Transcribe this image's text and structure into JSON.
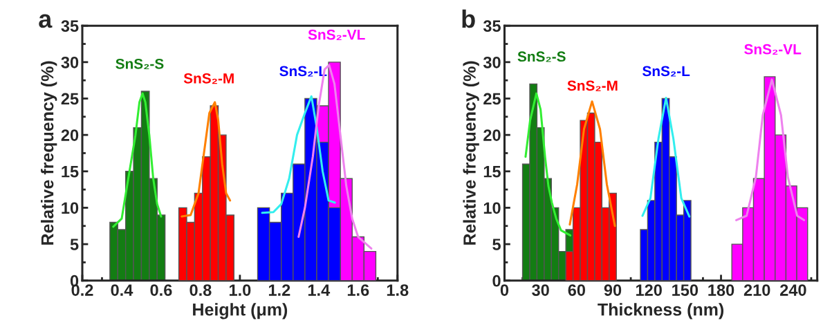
{
  "chart_data": [
    {
      "type": "histogram",
      "title": "a",
      "xlabel": "Height (μm)",
      "ylabel": "Relative frequency (%)",
      "xlim": [
        0.2,
        1.8
      ],
      "xticks": [
        {
          "value": 0.2,
          "label": "0.2"
        },
        {
          "value": 0.4,
          "label": "0.4"
        },
        {
          "value": 0.6,
          "label": "0.6"
        },
        {
          "value": 0.8,
          "label": "0.8"
        },
        {
          "value": 1.0,
          "label": "1.0"
        },
        {
          "value": 1.2,
          "label": "1.2"
        },
        {
          "value": 1.4,
          "label": "1.4"
        },
        {
          "value": 1.6,
          "label": "1.6"
        },
        {
          "value": 1.8,
          "label": "1.8"
        }
      ],
      "ylim": [
        0,
        35
      ],
      "yticks": [
        0,
        5,
        10,
        15,
        20,
        25,
        30,
        35
      ],
      "series": [
        {
          "name": "SnS₂-S",
          "type": "histogram",
          "color": "#137d13",
          "bins": [
            0.34,
            0.38,
            0.42,
            0.46,
            0.5,
            0.54,
            0.58,
            0.62
          ],
          "values": [
            8,
            7,
            15,
            21,
            26,
            14,
            9
          ]
        },
        {
          "type": "line",
          "color": "#33ee33",
          "x": [
            0.357,
            0.4,
            0.423,
            0.47,
            0.49,
            0.506,
            0.52,
            0.54,
            0.56,
            0.58,
            0.6
          ],
          "values": [
            7.4,
            8.5,
            12.3,
            20,
            24.5,
            25.7,
            24.5,
            20,
            14,
            10.5,
            8.8
          ]
        },
        {
          "name": "SnS₂-M",
          "type": "histogram",
          "color": "#ff0000",
          "bins": [
            0.69,
            0.73,
            0.77,
            0.81,
            0.85,
            0.89,
            0.93,
            0.97
          ],
          "values": [
            10,
            8,
            12,
            17,
            24,
            20,
            9
          ]
        },
        {
          "type": "line",
          "color": "#ff8000",
          "x": [
            0.705,
            0.75,
            0.79,
            0.82,
            0.845,
            0.873,
            0.89,
            0.91,
            0.93,
            0.95
          ],
          "values": [
            8.8,
            9.0,
            12,
            18,
            23,
            24.5,
            22,
            16,
            12,
            11
          ]
        },
        {
          "name": "SnS₂-VL",
          "type": "histogram",
          "color": "#ff00ff",
          "bins": [
            1.39,
            1.45,
            1.51,
            1.57,
            1.63,
            1.69
          ],
          "values": [
            24,
            30,
            14,
            6,
            4
          ]
        },
        {
          "name": "SnS₂-L",
          "type": "histogram",
          "color": "#0000ff",
          "bins": [
            1.09,
            1.15,
            1.21,
            1.27,
            1.33,
            1.39,
            1.45,
            1.51
          ],
          "values": [
            10,
            8,
            12,
            16,
            25,
            19,
            10
          ]
        },
        {
          "type": "line",
          "color": "#33eeee",
          "x": [
            1.113,
            1.17,
            1.21,
            1.25,
            1.29,
            1.33,
            1.363,
            1.39,
            1.42,
            1.45,
            1.482
          ],
          "values": [
            9.3,
            9.4,
            10.5,
            14,
            20,
            23,
            25.3,
            21,
            15,
            11,
            10.7
          ]
        },
        {
          "type": "line",
          "color": "#ee82ee",
          "x": [
            1.298,
            1.33,
            1.37,
            1.4,
            1.43,
            1.453,
            1.48,
            1.51,
            1.54,
            1.57,
            1.6,
            1.667
          ],
          "values": [
            6,
            10,
            17,
            24,
            29,
            29.6,
            27,
            20,
            13,
            8.5,
            6,
            4.4
          ]
        }
      ]
    },
    {
      "type": "histogram",
      "title": "b",
      "xlabel": "Thickness (nm)",
      "ylabel": "Relative frequency (%)",
      "xlim": [
        0,
        260
      ],
      "xticks": [
        0,
        30,
        60,
        90,
        120,
        150,
        180,
        210,
        240
      ],
      "ylim": [
        0,
        35
      ],
      "yticks": [
        0,
        5,
        10,
        15,
        20,
        25,
        30,
        35
      ],
      "series": [
        {
          "name": "SnS₂-S",
          "type": "histogram",
          "color": "#137d13",
          "bins": [
            15,
            21,
            27,
            33,
            39,
            45,
            51,
            57
          ],
          "values": [
            16,
            27,
            21,
            14,
            10,
            4,
            7
          ]
        },
        {
          "type": "line",
          "color": "#33ee33",
          "x": [
            17.5,
            21.3,
            26.5,
            30,
            33.7,
            36.5,
            39.4,
            43,
            47,
            54.7
          ],
          "values": [
            17,
            22,
            25.7,
            23.5,
            17,
            13,
            10.7,
            8.5,
            6.9,
            6.2
          ]
        },
        {
          "name": "SnS₂-M",
          "type": "histogram",
          "color": "#ff0000",
          "bins": [
            51,
            57,
            63,
            69,
            75,
            81,
            87,
            93
          ],
          "values": [
            4,
            10,
            22,
            23,
            19,
            10,
            12
          ]
        },
        {
          "type": "line",
          "color": "#ff8000",
          "x": [
            54.3,
            60.4,
            66.1,
            72.8,
            79.4,
            85.1,
            91.8
          ],
          "values": [
            7.7,
            13.2,
            20.8,
            24.6,
            20.8,
            13.2,
            7.5
          ]
        },
        {
          "name": "SnS₂-L",
          "type": "histogram",
          "color": "#0000ff",
          "bins": [
            113,
            119,
            125,
            131,
            137,
            143,
            149,
            155
          ],
          "values": [
            7,
            11,
            19,
            25,
            17,
            9,
            11
          ]
        },
        {
          "type": "line",
          "color": "#33eeee",
          "x": [
            114.7,
            121.3,
            128,
            134.3,
            140.4,
            147,
            153.7
          ],
          "values": [
            8.9,
            11.3,
            19.5,
            25.1,
            19.5,
            11.3,
            8.8
          ]
        },
        {
          "name": "SnS₂-VL",
          "type": "histogram",
          "color": "#ff00ff",
          "bins": [
            189,
            198,
            207,
            216,
            225,
            234,
            243,
            252
          ],
          "values": [
            5,
            10,
            14,
            28,
            20,
            13,
            10
          ]
        },
        {
          "type": "line",
          "color": "#ee82ee",
          "x": [
            192.7,
            201.3,
            209,
            214.7,
            222.3,
            229.9,
            235.6,
            243.3,
            249
          ],
          "values": [
            8.3,
            8.9,
            14.2,
            22.7,
            27.6,
            22.7,
            14.2,
            8.9,
            8.3
          ]
        }
      ]
    }
  ]
}
